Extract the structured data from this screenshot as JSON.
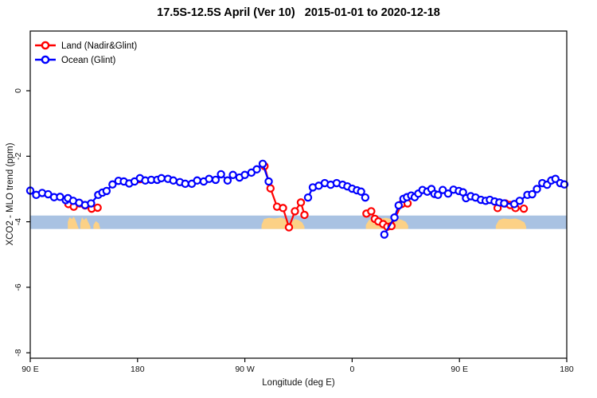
{
  "title": "17.5S-12.5S April (Ver 10)   2015-01-01 to 2020-12-18",
  "chart_data": {
    "type": "line",
    "title": "17.5S-12.5S April (Ver 10)   2015-01-01 to 2020-12-18",
    "xlabel": "Longitude (deg E)",
    "ylabel": "XCO2 - MLO trend (ppm)",
    "x_axis_note": "longitude wraps: 90E to 180 to 90W to 0 to 90E to 180 (450 deg total, stored as 90..540)",
    "xlim": [
      90,
      540
    ],
    "ylim": [
      -8.2,
      1.8
    ],
    "grid": false,
    "x_ticks": [
      {
        "lon": 90,
        "label": "90 E"
      },
      {
        "lon": 180,
        "label": "180"
      },
      {
        "lon": 270,
        "label": "90 W"
      },
      {
        "lon": 360,
        "label": "0"
      },
      {
        "lon": 450,
        "label": "90 E"
      },
      {
        "lon": 540,
        "label": "180"
      }
    ],
    "y_ticks": [
      {
        "val": 0,
        "label": "0"
      },
      {
        "val": -2,
        "label": "-2"
      },
      {
        "val": -4,
        "label": "-4"
      },
      {
        "val": -6,
        "label": "-6"
      },
      {
        "val": -8,
        "label": "-8"
      }
    ],
    "legend": {
      "position": "top-left",
      "entries": [
        {
          "name": "Land (Nadir&Glint)",
          "color": "#ff0000"
        },
        {
          "name": "Ocean (Glint)",
          "color": "#0000ff"
        }
      ]
    },
    "band": {
      "from": -3.81,
      "to": -4.22,
      "color": "#a9c2e2",
      "meaning": "horizontal reference band centered near -4 ppm"
    },
    "land_patches": {
      "color": "#fcd186",
      "bottom": -4.22,
      "patches": [
        [
          [
            121.5,
            -4.0
          ],
          [
            123,
            -3.86
          ],
          [
            125,
            -3.92
          ],
          [
            126.5,
            -3.84
          ],
          [
            128,
            -3.95
          ],
          [
            129.5,
            -4.1
          ],
          [
            130.5,
            -4.2
          ]
        ],
        [
          [
            132,
            -4.05
          ],
          [
            133.5,
            -3.86
          ],
          [
            135,
            -3.95
          ],
          [
            137,
            -3.88
          ],
          [
            138.5,
            -4.0
          ],
          [
            140.5,
            -4.15
          ]
        ],
        [
          [
            143,
            -4.1
          ],
          [
            145,
            -3.98
          ],
          [
            147.5,
            -4.05
          ],
          [
            148.5,
            -4.18
          ]
        ],
        [
          [
            284,
            -4.1
          ],
          [
            286,
            -3.92
          ],
          [
            290,
            -3.88
          ],
          [
            295,
            -3.9
          ],
          [
            300,
            -3.87
          ],
          [
            304,
            -3.92
          ],
          [
            306,
            -4.05
          ],
          [
            308,
            -4.18
          ],
          [
            309.5,
            -4.0
          ],
          [
            312,
            -3.92
          ],
          [
            315,
            -3.95
          ],
          [
            318,
            -4.02
          ],
          [
            320,
            -4.15
          ]
        ],
        [
          [
            371.5,
            -4.1
          ],
          [
            374,
            -3.95
          ],
          [
            378,
            -3.9
          ],
          [
            383,
            -3.92
          ],
          [
            388,
            -3.88
          ],
          [
            393,
            -3.92
          ],
          [
            398,
            -3.9
          ],
          [
            402,
            -3.95
          ],
          [
            405,
            -4.0
          ],
          [
            407,
            -4.12
          ]
        ],
        [
          [
            480.5,
            -4.12
          ],
          [
            483,
            -3.95
          ],
          [
            487,
            -3.9
          ],
          [
            492,
            -3.92
          ],
          [
            497,
            -3.9
          ],
          [
            501,
            -3.95
          ],
          [
            504.5,
            -4.02
          ],
          [
            506,
            -4.15
          ]
        ]
      ]
    },
    "series": [
      {
        "name": "Land (Nadir&Glint)",
        "color": "#ff0000",
        "marker": "open-circle",
        "segments": [
          [
            [
              122,
              -3.46
            ],
            [
              126.5,
              -3.54
            ],
            [
              131.5,
              -3.44
            ],
            [
              136,
              -3.5
            ],
            [
              141.5,
              -3.6
            ],
            [
              146.5,
              -3.57
            ]
          ],
          [
            [
              182,
              -2.7
            ]
          ],
          [
            [
              286.5,
              -2.3
            ],
            [
              291.5,
              -2.98
            ],
            [
              297,
              -3.54
            ],
            [
              302,
              -3.58
            ],
            [
              307,
              -4.17
            ],
            [
              312,
              -3.68
            ],
            [
              317,
              -3.41
            ],
            [
              320,
              -3.79
            ]
          ],
          [
            [
              372,
              -3.75
            ],
            [
              376,
              -3.68
            ],
            [
              379,
              -3.91
            ],
            [
              382,
              -3.99
            ],
            [
              386,
              -4.07
            ],
            [
              389.5,
              -4.15
            ],
            [
              393,
              -4.13
            ],
            [
              401.5,
              -3.46
            ],
            [
              406.5,
              -3.44
            ]
          ],
          [
            [
              482,
              -3.58
            ],
            [
              488.5,
              -3.44
            ],
            [
              492.5,
              -3.49
            ],
            [
              497,
              -3.58
            ],
            [
              504,
              -3.6
            ]
          ]
        ]
      },
      {
        "name": "Ocean (Glint)",
        "color": "#0000ff",
        "marker": "open-circle",
        "segments": [
          [
            [
              90,
              -3.05
            ],
            [
              95,
              -3.18
            ],
            [
              100,
              -3.12
            ],
            [
              105,
              -3.16
            ],
            [
              110,
              -3.25
            ],
            [
              115,
              -3.24
            ],
            [
              119.8,
              -3.34
            ],
            [
              121.6,
              -3.28
            ],
            [
              126,
              -3.36
            ],
            [
              131,
              -3.42
            ],
            [
              136,
              -3.49
            ],
            [
              141,
              -3.44
            ],
            [
              147,
              -3.18
            ],
            [
              150.5,
              -3.11
            ],
            [
              154,
              -3.06
            ],
            [
              159,
              -2.86
            ],
            [
              164,
              -2.75
            ],
            [
              168.5,
              -2.77
            ],
            [
              173,
              -2.83
            ],
            [
              177.5,
              -2.77
            ],
            [
              182,
              -2.67
            ],
            [
              186.5,
              -2.74
            ],
            [
              191.5,
              -2.72
            ],
            [
              196.5,
              -2.72
            ],
            [
              200,
              -2.67
            ],
            [
              205.5,
              -2.69
            ],
            [
              210,
              -2.74
            ],
            [
              215.5,
              -2.79
            ],
            [
              220,
              -2.84
            ],
            [
              225.5,
              -2.84
            ],
            [
              230,
              -2.74
            ],
            [
              235.5,
              -2.77
            ],
            [
              240,
              -2.69
            ],
            [
              245.5,
              -2.72
            ],
            [
              250,
              -2.55
            ],
            [
              255.5,
              -2.74
            ],
            [
              260,
              -2.57
            ],
            [
              265.5,
              -2.65
            ],
            [
              270,
              -2.57
            ],
            [
              275.5,
              -2.5
            ],
            [
              280,
              -2.4
            ],
            [
              285,
              -2.23
            ],
            [
              290,
              -2.77
            ]
          ],
          [
            [
              323,
              -3.26
            ],
            [
              327,
              -2.95
            ],
            [
              332,
              -2.9
            ],
            [
              337,
              -2.82
            ],
            [
              342,
              -2.87
            ],
            [
              347,
              -2.82
            ],
            [
              352,
              -2.87
            ],
            [
              356,
              -2.92
            ],
            [
              360,
              -2.99
            ],
            [
              364,
              -3.04
            ],
            [
              367.5,
              -3.08
            ],
            [
              371,
              -3.26
            ]
          ],
          [
            [
              387,
              -4.39
            ],
            [
              395.5,
              -3.87
            ],
            [
              399,
              -3.5
            ],
            [
              403,
              -3.3
            ],
            [
              406,
              -3.25
            ],
            [
              409.5,
              -3.2
            ],
            [
              412.5,
              -3.25
            ],
            [
              415.5,
              -3.14
            ],
            [
              419,
              -3.03
            ],
            [
              423,
              -3.08
            ],
            [
              426.5,
              -3.0
            ],
            [
              429,
              -3.15
            ],
            [
              432,
              -3.18
            ],
            [
              436,
              -3.03
            ],
            [
              440.5,
              -3.14
            ],
            [
              445,
              -3.02
            ],
            [
              449.5,
              -3.06
            ],
            [
              453,
              -3.1
            ],
            [
              455.5,
              -3.28
            ],
            [
              459.5,
              -3.22
            ],
            [
              463.5,
              -3.26
            ],
            [
              468,
              -3.33
            ],
            [
              472,
              -3.36
            ],
            [
              475.5,
              -3.33
            ],
            [
              479.5,
              -3.38
            ],
            [
              483.5,
              -3.41
            ],
            [
              487.5,
              -3.44
            ],
            [
              496,
              -3.46
            ],
            [
              500.5,
              -3.36
            ],
            [
              507,
              -3.18
            ],
            [
              511,
              -3.16
            ],
            [
              515,
              -3.0
            ],
            [
              519.5,
              -2.82
            ],
            [
              523.5,
              -2.87
            ],
            [
              527,
              -2.74
            ],
            [
              530.5,
              -2.69
            ],
            [
              534.5,
              -2.82
            ],
            [
              538,
              -2.86
            ]
          ]
        ]
      }
    ]
  }
}
